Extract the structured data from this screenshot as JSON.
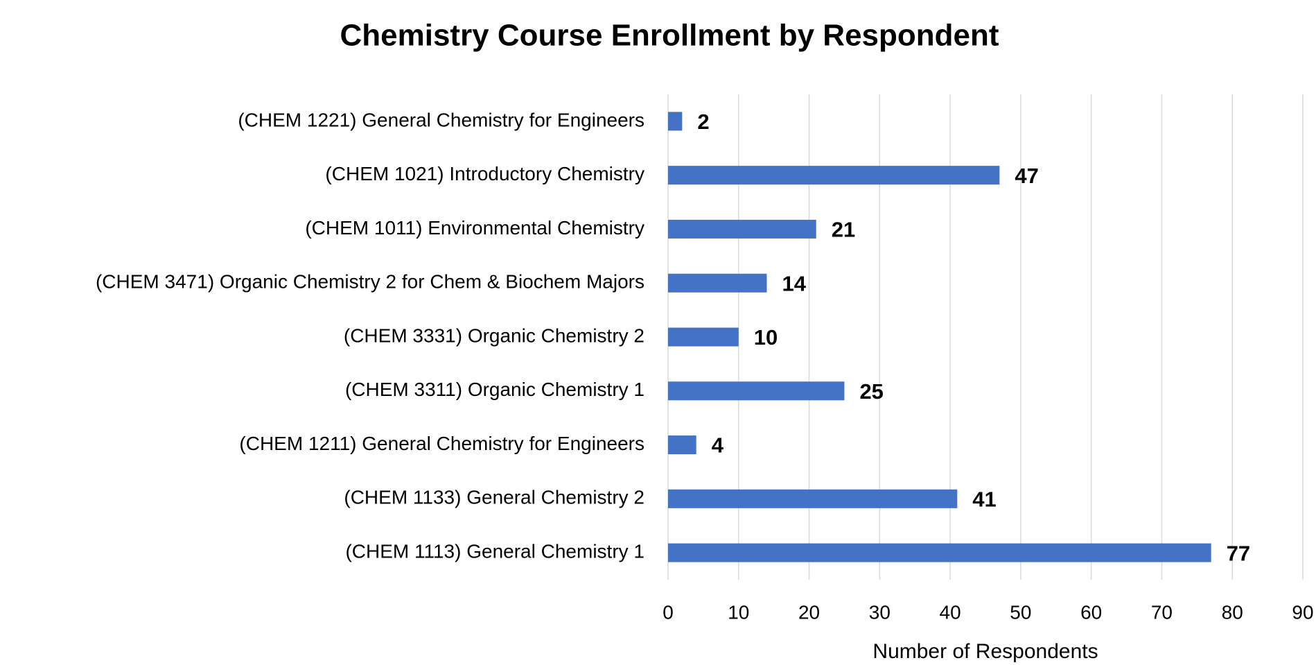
{
  "chart_data": {
    "type": "bar",
    "orientation": "horizontal",
    "title": "Chemistry Course Enrollment by Respondent",
    "x_label": "Number of Respondents",
    "categories": [
      "(CHEM 1221) General Chemistry for Engineers",
      "(CHEM 1021) Introductory Chemistry",
      "(CHEM 1011) Environmental Chemistry",
      "(CHEM 3471) Organic Chemistry 2 for Chem & Biochem Majors",
      "(CHEM 3331) Organic Chemistry 2",
      "(CHEM 3311) Organic Chemistry 1",
      "(CHEM 1211) General Chemistry for Engineers",
      "(CHEM 1133) General Chemistry 2",
      "(CHEM 1113) General Chemistry 1"
    ],
    "values": [
      2,
      47,
      21,
      14,
      10,
      25,
      4,
      41,
      77
    ],
    "color": "#4472c4",
    "xlim": [
      0,
      90
    ],
    "xticks": [
      0,
      10,
      20,
      30,
      40,
      50,
      60,
      70,
      80,
      90
    ],
    "grid": true
  }
}
